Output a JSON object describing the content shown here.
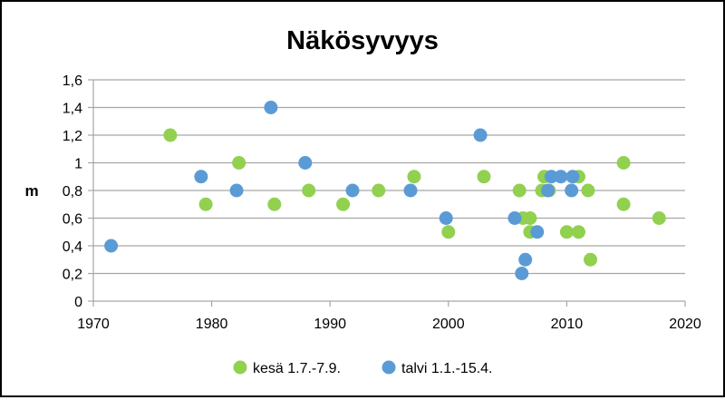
{
  "chart_data": {
    "type": "scatter",
    "title": "Näkösyvyys",
    "xlabel": "",
    "ylabel": "m",
    "xlim": [
      1970,
      2020
    ],
    "ylim": [
      0,
      1.6
    ],
    "x_ticks": [
      1970,
      1980,
      1990,
      2000,
      2010,
      2020
    ],
    "y_ticks": [
      0,
      0.2,
      0.4,
      0.6,
      0.8,
      1,
      1.2,
      1.4,
      1.6
    ],
    "x_tick_labels": [
      "1970",
      "1980",
      "1990",
      "2000",
      "2010",
      "2020"
    ],
    "y_tick_labels": [
      "0",
      "0,2",
      "0,4",
      "0,6",
      "0,8",
      "1",
      "1,2",
      "1,4",
      "1,6"
    ],
    "grid": "horizontal",
    "legend_position": "bottom",
    "series": [
      {
        "name": "kesä 1.7.-7.9.",
        "color": "#92D050",
        "points": [
          [
            1976.5,
            1.2
          ],
          [
            1979.5,
            0.7
          ],
          [
            1982.3,
            1.0
          ],
          [
            1985.3,
            0.7
          ],
          [
            1988.2,
            0.8
          ],
          [
            1991.1,
            0.7
          ],
          [
            1994.1,
            0.8
          ],
          [
            1997.1,
            0.9
          ],
          [
            2000.0,
            0.5
          ],
          [
            2003.0,
            0.9
          ],
          [
            2006.0,
            0.8
          ],
          [
            2006.3,
            0.6
          ],
          [
            2006.9,
            0.6
          ],
          [
            2006.9,
            0.5
          ],
          [
            2007.9,
            0.8
          ],
          [
            2008.1,
            0.9
          ],
          [
            2008.5,
            0.8
          ],
          [
            2010.0,
            0.5
          ],
          [
            2011.0,
            0.5
          ],
          [
            2011.0,
            0.9
          ],
          [
            2011.8,
            0.8
          ],
          [
            2012.0,
            0.3
          ],
          [
            2014.8,
            1.0
          ],
          [
            2014.8,
            0.7
          ],
          [
            2017.8,
            0.6
          ]
        ]
      },
      {
        "name": "talvi 1.1.-15.4.",
        "color": "#5B9BD5",
        "points": [
          [
            1971.5,
            0.4
          ],
          [
            1979.1,
            0.9
          ],
          [
            1982.1,
            0.8
          ],
          [
            1985.0,
            1.4
          ],
          [
            1987.9,
            1.0
          ],
          [
            1991.9,
            0.8
          ],
          [
            1996.8,
            0.8
          ],
          [
            1999.8,
            0.6
          ],
          [
            2002.7,
            1.2
          ],
          [
            2005.6,
            0.6
          ],
          [
            2006.2,
            0.2
          ],
          [
            2006.5,
            0.3
          ],
          [
            2007.5,
            0.5
          ],
          [
            2008.4,
            0.8
          ],
          [
            2008.7,
            0.9
          ],
          [
            2009.5,
            0.9
          ],
          [
            2010.4,
            0.8
          ],
          [
            2010.5,
            0.9
          ]
        ]
      }
    ]
  }
}
